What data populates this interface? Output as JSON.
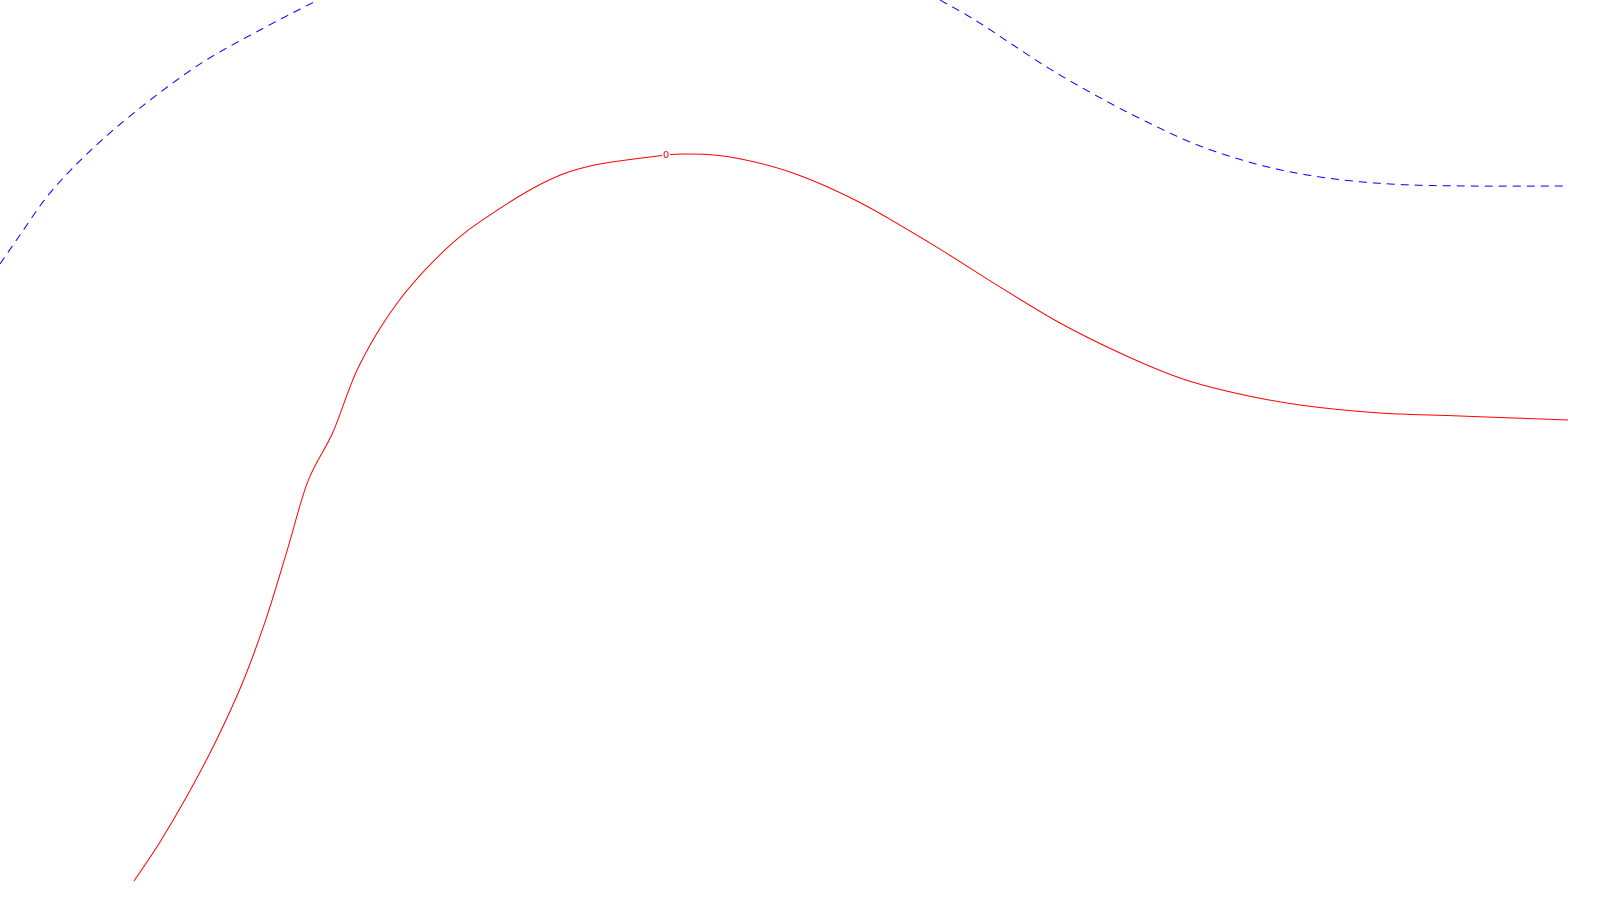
{
  "chart_data": {
    "type": "line",
    "grid": false,
    "legend": "none",
    "series": [
      {
        "label": "0",
        "color": "#ff0000",
        "style": "solid",
        "points": [
          [
            134,
            881
          ],
          [
            160,
            842
          ],
          [
            187,
            796
          ],
          [
            214,
            745
          ],
          [
            242,
            684
          ],
          [
            266,
            619
          ],
          [
            287,
            551
          ],
          [
            308,
            481
          ],
          [
            333,
            432
          ],
          [
            359,
            366
          ],
          [
            398,
            302
          ],
          [
            447,
            248
          ],
          [
            490,
            215
          ],
          [
            545,
            182
          ],
          [
            590,
            166
          ],
          [
            650,
            157
          ],
          [
            686,
            154
          ],
          [
            730,
            157
          ],
          [
            790,
            172
          ],
          [
            857,
            201
          ],
          [
            930,
            243
          ],
          [
            1000,
            287
          ],
          [
            1060,
            323
          ],
          [
            1120,
            353
          ],
          [
            1180,
            378
          ],
          [
            1235,
            393
          ],
          [
            1300,
            405
          ],
          [
            1380,
            413
          ],
          [
            1460,
            416
          ],
          [
            1568,
            420
          ]
        ]
      },
      {
        "color": "#0000ff",
        "style": "dashed",
        "points": [
          [
            0,
            264
          ],
          [
            20,
            235
          ],
          [
            50,
            193
          ],
          [
            90,
            151
          ],
          [
            140,
            108
          ],
          [
            200,
            64
          ],
          [
            260,
            30
          ],
          [
            318,
            0
          ]
        ]
      },
      {
        "color": "#0000ff",
        "style": "dashed",
        "points": [
          [
            940,
            0
          ],
          [
            975,
            20
          ],
          [
            1010,
            43
          ],
          [
            1050,
            69
          ],
          [
            1095,
            95
          ],
          [
            1145,
            121
          ],
          [
            1200,
            146
          ],
          [
            1260,
            165
          ],
          [
            1320,
            177
          ],
          [
            1390,
            184
          ],
          [
            1470,
            186
          ],
          [
            1568,
            186
          ]
        ]
      }
    ]
  }
}
